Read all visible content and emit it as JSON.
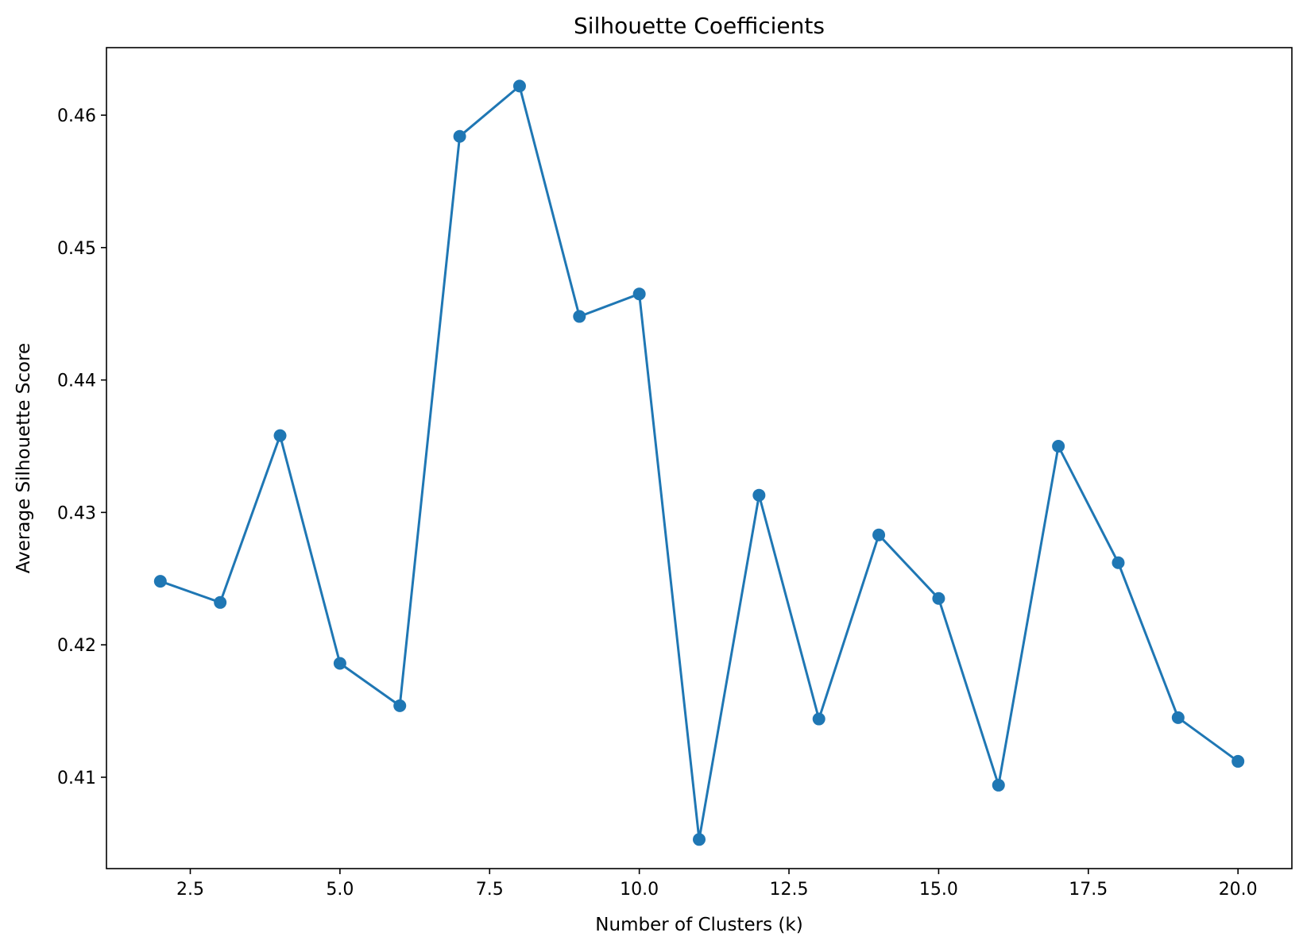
{
  "chart_data": {
    "type": "line",
    "title": "Silhouette Coefficients",
    "xlabel": "Number of Clusters (k)",
    "ylabel": "Average Silhouette Score",
    "xlim": [
      1.1,
      20.9
    ],
    "ylim": [
      0.4031,
      0.4651
    ],
    "x_ticks": [
      2.5,
      5.0,
      7.5,
      10.0,
      12.5,
      15.0,
      17.5,
      20.0
    ],
    "x_tick_labels": [
      "2.5",
      "5.0",
      "7.5",
      "10.0",
      "12.5",
      "15.0",
      "17.5",
      "20.0"
    ],
    "y_ticks": [
      0.41,
      0.42,
      0.43,
      0.44,
      0.45,
      0.46
    ],
    "y_tick_labels": [
      "0.41",
      "0.42",
      "0.43",
      "0.44",
      "0.45",
      "0.46"
    ],
    "grid": false,
    "series": [
      {
        "color": "#1f77b4",
        "marker": "circle",
        "x": [
          2,
          3,
          4,
          5,
          6,
          7,
          8,
          9,
          10,
          11,
          12,
          13,
          14,
          15,
          16,
          17,
          18,
          19,
          20
        ],
        "y": [
          0.4248,
          0.4232,
          0.4358,
          0.4186,
          0.4154,
          0.4584,
          0.4622,
          0.4448,
          0.4465,
          0.4053,
          0.4313,
          0.4144,
          0.4283,
          0.4235,
          0.4094,
          0.435,
          0.4262,
          0.4145,
          0.4112
        ]
      }
    ]
  }
}
